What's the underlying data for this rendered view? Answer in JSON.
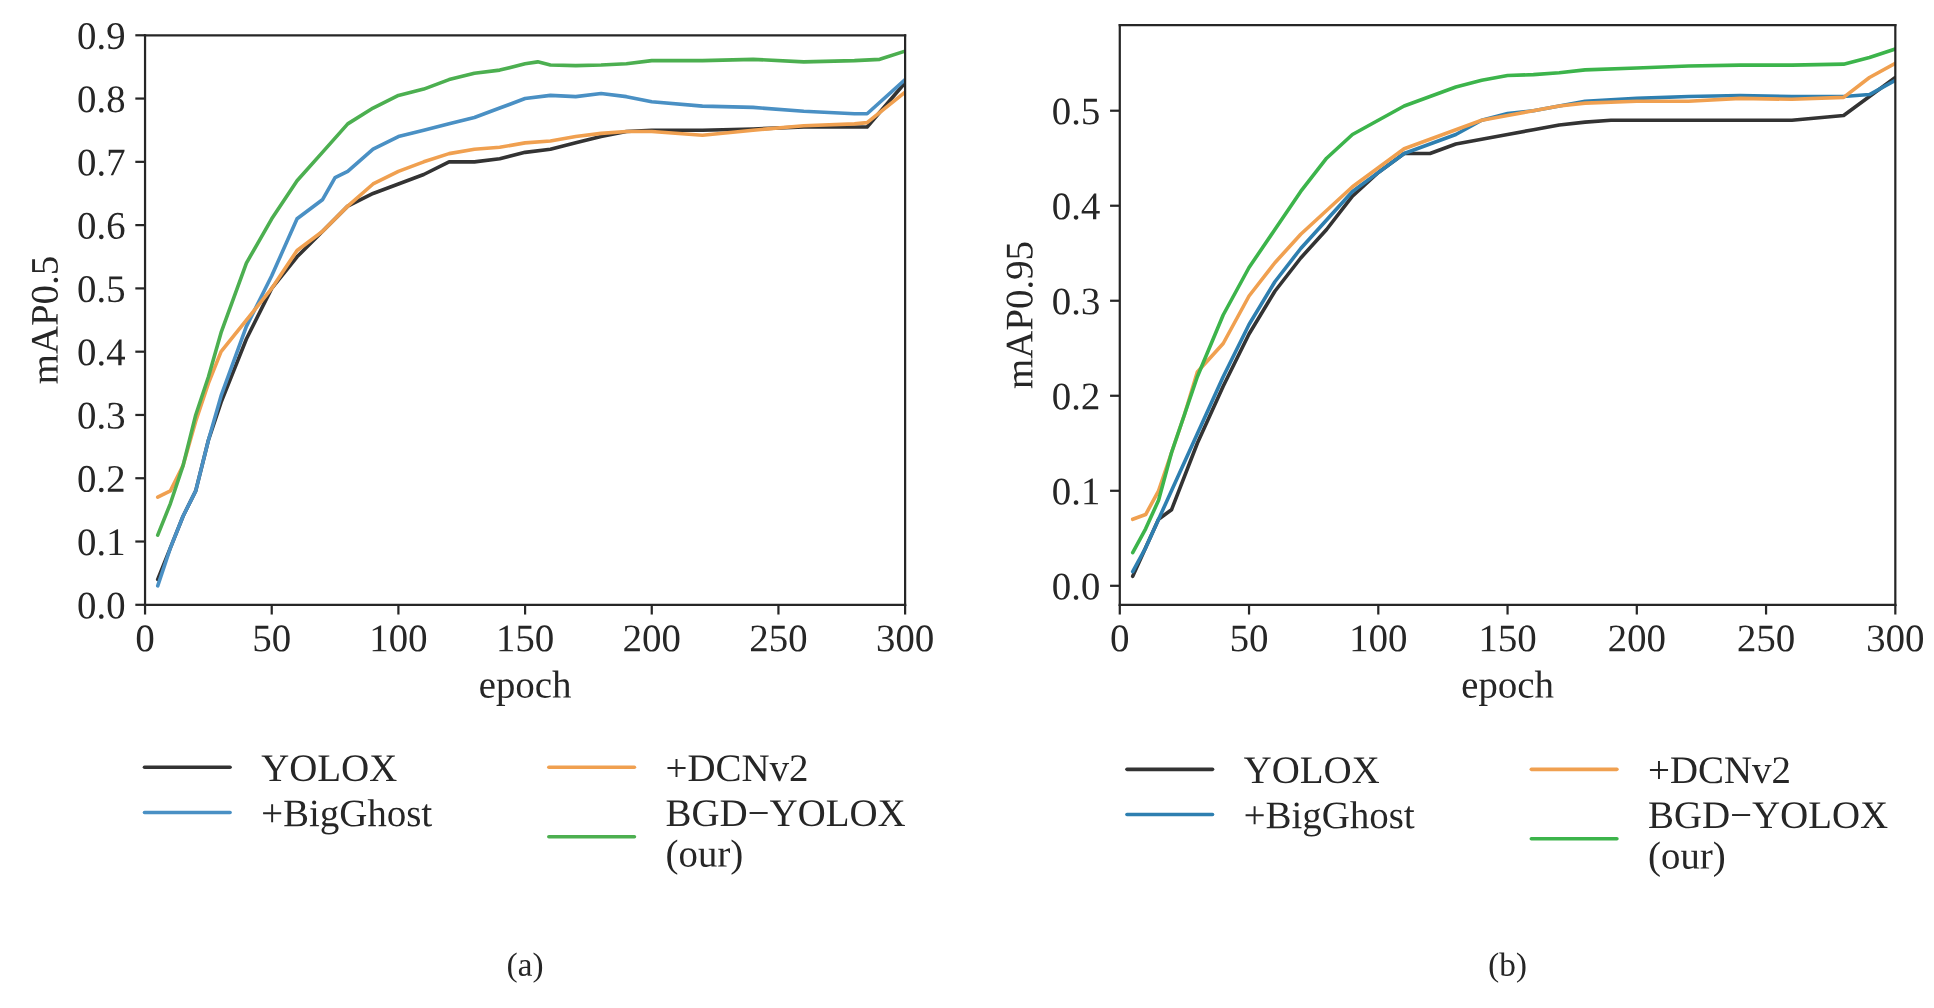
{
  "chart_data": [
    {
      "type": "line",
      "xlabel": "epoch",
      "ylabel": "mAP0.5",
      "xlim": [
        0,
        300
      ],
      "xticks": [
        0,
        50,
        100,
        150,
        200,
        250,
        300
      ],
      "ylim": [
        0,
        0.9
      ],
      "yticks": [
        {
          "value": 0,
          "label": "0.0"
        },
        0.1,
        0.2,
        0.3,
        0.4,
        0.5,
        0.6,
        0.7,
        0.8,
        0.9
      ],
      "legend": "bottom",
      "grid": false,
      "annotations": [
        "(a)"
      ],
      "series": [
        {
          "name": "YOLOX",
          "color": "#333333",
          "x": [
            5,
            10,
            15,
            20,
            25,
            30,
            40,
            50,
            60,
            70,
            80,
            90,
            100,
            110,
            120,
            130,
            140,
            150,
            160,
            170,
            180,
            190,
            200,
            220,
            240,
            260,
            280,
            285,
            300
          ],
          "values": [
            0.04,
            0.09,
            0.14,
            0.18,
            0.26,
            0.32,
            0.42,
            0.5,
            0.55,
            0.59,
            0.63,
            0.65,
            0.665,
            0.68,
            0.7,
            0.7,
            0.705,
            0.715,
            0.72,
            0.73,
            0.74,
            0.748,
            0.75,
            0.75,
            0.752,
            0.755,
            0.755,
            0.755,
            0.825
          ]
        },
        {
          "name": "+BigGhost",
          "color": "#4a90c4",
          "x": [
            5,
            10,
            15,
            20,
            25,
            30,
            40,
            50,
            60,
            65,
            70,
            75,
            80,
            90,
            100,
            110,
            120,
            130,
            140,
            150,
            160,
            170,
            180,
            190,
            200,
            220,
            240,
            260,
            280,
            285,
            300
          ],
          "values": [
            0.03,
            0.09,
            0.14,
            0.18,
            0.26,
            0.33,
            0.44,
            0.52,
            0.61,
            0.625,
            0.64,
            0.675,
            0.685,
            0.72,
            0.74,
            0.75,
            0.76,
            0.77,
            0.785,
            0.8,
            0.805,
            0.803,
            0.808,
            0.803,
            0.795,
            0.788,
            0.786,
            0.78,
            0.776,
            0.776,
            0.83
          ]
        },
        {
          "name": "+DCNv2",
          "color": "#f0a050",
          "x": [
            5,
            10,
            15,
            20,
            25,
            30,
            40,
            50,
            60,
            70,
            80,
            90,
            100,
            110,
            120,
            130,
            140,
            150,
            160,
            170,
            180,
            190,
            200,
            220,
            240,
            260,
            280,
            285,
            300
          ],
          "values": [
            0.17,
            0.18,
            0.22,
            0.29,
            0.35,
            0.4,
            0.45,
            0.5,
            0.56,
            0.59,
            0.63,
            0.665,
            0.685,
            0.7,
            0.713,
            0.72,
            0.723,
            0.73,
            0.733,
            0.74,
            0.745,
            0.748,
            0.748,
            0.742,
            0.75,
            0.757,
            0.76,
            0.762,
            0.81
          ]
        },
        {
          "name": "BGD−YOLOX\n(our)",
          "color": "#4caf50",
          "x": [
            5,
            10,
            15,
            20,
            25,
            30,
            40,
            50,
            60,
            70,
            80,
            90,
            100,
            110,
            120,
            130,
            140,
            150,
            155,
            160,
            170,
            180,
            190,
            200,
            220,
            240,
            260,
            280,
            290,
            300
          ],
          "values": [
            0.11,
            0.16,
            0.22,
            0.3,
            0.36,
            0.43,
            0.54,
            0.61,
            0.67,
            0.715,
            0.76,
            0.785,
            0.805,
            0.815,
            0.83,
            0.84,
            0.845,
            0.855,
            0.858,
            0.853,
            0.852,
            0.853,
            0.855,
            0.86,
            0.86,
            0.862,
            0.858,
            0.86,
            0.862,
            0.875
          ]
        }
      ]
    },
    {
      "type": "line",
      "xlabel": "epoch",
      "ylabel": "mAP0.95",
      "xlim": [
        0,
        300
      ],
      "xticks": [
        0,
        50,
        100,
        150,
        200,
        250,
        300
      ],
      "ylim": [
        -0.02,
        0.59
      ],
      "yticks": [
        {
          "value": 0,
          "label": "0.0"
        },
        0.1,
        0.2,
        0.3,
        0.4,
        0.5
      ],
      "legend": "bottom",
      "grid": false,
      "annotations": [
        "(b)"
      ],
      "series": [
        {
          "name": "YOLOX",
          "color": "#333333",
          "x": [
            5,
            10,
            15,
            20,
            30,
            40,
            50,
            60,
            70,
            80,
            90,
            100,
            110,
            120,
            130,
            140,
            150,
            160,
            170,
            180,
            190,
            200,
            220,
            240,
            260,
            280,
            300
          ],
          "values": [
            0.01,
            0.04,
            0.07,
            0.08,
            0.15,
            0.21,
            0.265,
            0.31,
            0.345,
            0.375,
            0.41,
            0.435,
            0.455,
            0.455,
            0.465,
            0.47,
            0.475,
            0.48,
            0.485,
            0.488,
            0.49,
            0.49,
            0.49,
            0.49,
            0.49,
            0.495,
            0.535
          ]
        },
        {
          "name": "+BigGhost",
          "color": "#2e7fb0",
          "x": [
            5,
            10,
            15,
            20,
            30,
            40,
            50,
            60,
            70,
            80,
            90,
            100,
            110,
            120,
            130,
            140,
            150,
            160,
            170,
            180,
            200,
            220,
            240,
            260,
            280,
            290,
            300
          ],
          "values": [
            0.015,
            0.04,
            0.07,
            0.1,
            0.16,
            0.22,
            0.275,
            0.32,
            0.355,
            0.385,
            0.415,
            0.435,
            0.455,
            0.465,
            0.475,
            0.49,
            0.497,
            0.5,
            0.505,
            0.51,
            0.513,
            0.515,
            0.516,
            0.515,
            0.515,
            0.517,
            0.532
          ]
        },
        {
          "name": "+DCNv2",
          "color": "#f0a050",
          "x": [
            5,
            10,
            15,
            20,
            25,
            30,
            40,
            50,
            60,
            70,
            80,
            90,
            100,
            110,
            120,
            130,
            140,
            150,
            160,
            170,
            180,
            200,
            220,
            240,
            260,
            280,
            290,
            300
          ],
          "values": [
            0.07,
            0.075,
            0.1,
            0.14,
            0.18,
            0.225,
            0.255,
            0.305,
            0.34,
            0.37,
            0.395,
            0.42,
            0.44,
            0.46,
            0.47,
            0.48,
            0.49,
            0.495,
            0.5,
            0.505,
            0.508,
            0.51,
            0.51,
            0.513,
            0.512,
            0.514,
            0.535,
            0.55
          ]
        },
        {
          "name": "BGD−YOLOX\n(our)",
          "color": "#3cb44b",
          "x": [
            5,
            10,
            15,
            20,
            30,
            40,
            50,
            60,
            70,
            80,
            90,
            100,
            110,
            120,
            130,
            140,
            150,
            160,
            170,
            180,
            200,
            220,
            240,
            260,
            280,
            290,
            300
          ],
          "values": [
            0.035,
            0.06,
            0.09,
            0.14,
            0.22,
            0.285,
            0.335,
            0.375,
            0.415,
            0.45,
            0.475,
            0.49,
            0.505,
            0.515,
            0.525,
            0.532,
            0.537,
            0.538,
            0.54,
            0.543,
            0.545,
            0.547,
            0.548,
            0.548,
            0.549,
            0.556,
            0.565
          ]
        }
      ]
    }
  ]
}
